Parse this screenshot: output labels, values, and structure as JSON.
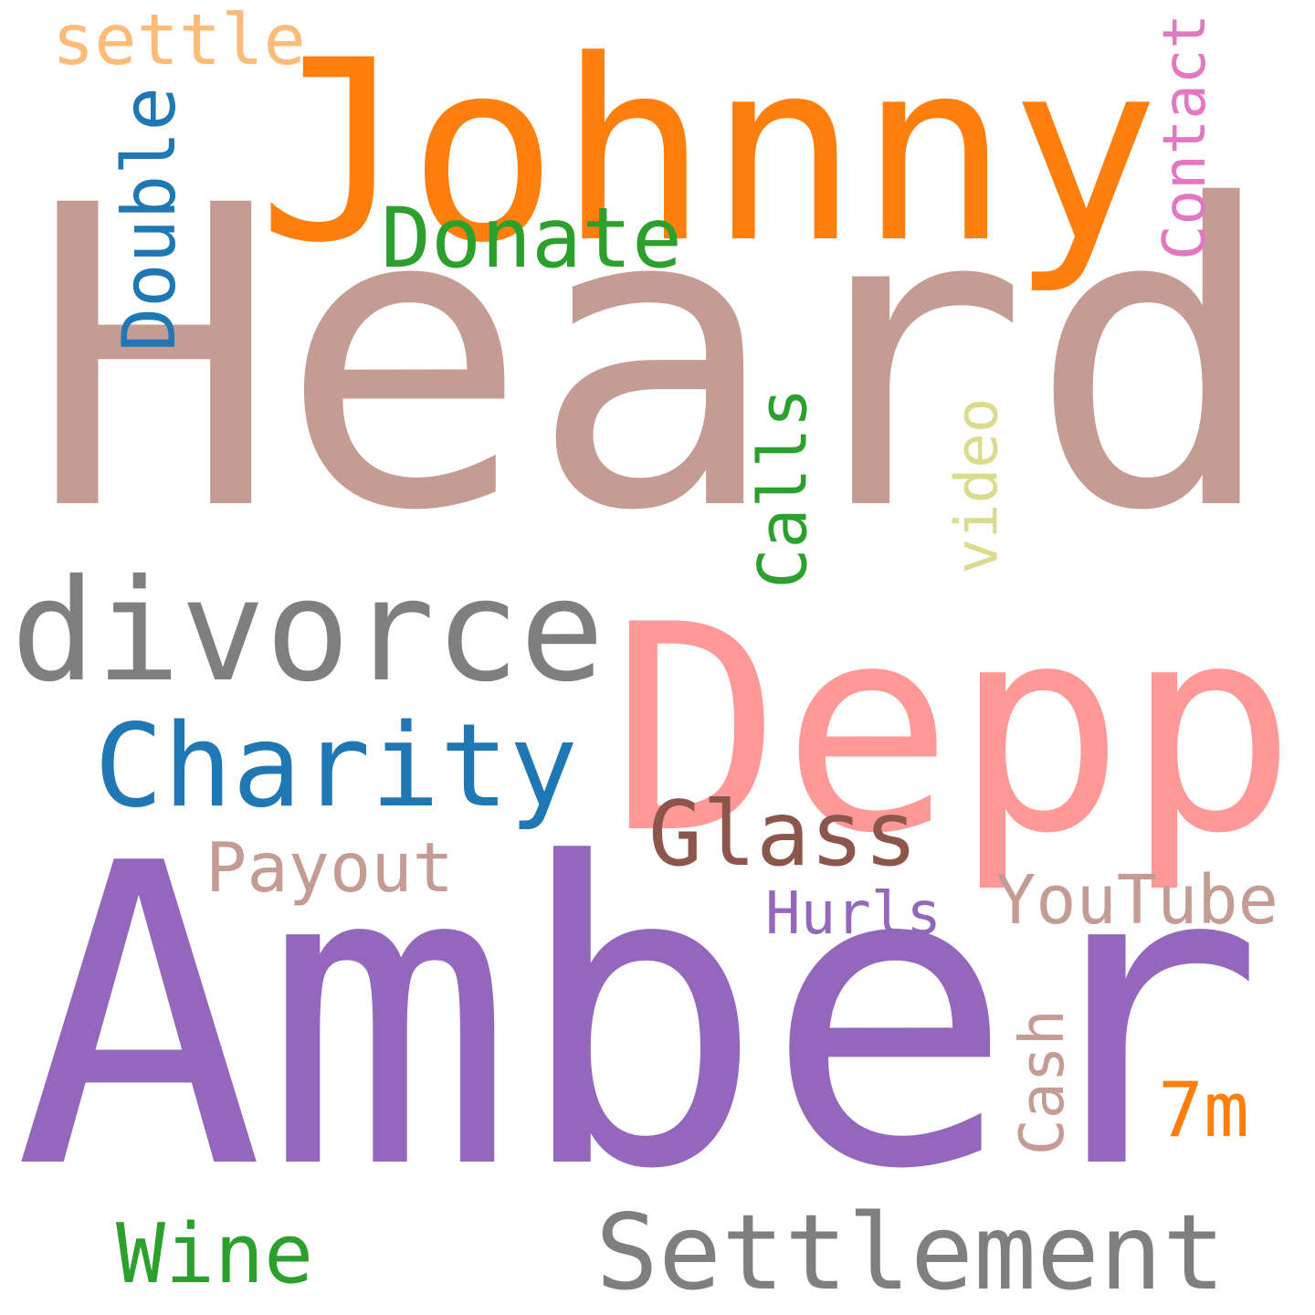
{
  "words": [
    {
      "text": "Heard",
      "color": "#c49c94"
    },
    {
      "text": "Amber",
      "color": "#9467bd"
    },
    {
      "text": "Johnny",
      "color": "#ff7f0e"
    },
    {
      "text": "Depp",
      "color": "#ff9896"
    },
    {
      "text": "divorce",
      "color": "#7f7f7f"
    },
    {
      "text": "Charity",
      "color": "#1f77b4"
    },
    {
      "text": "Settlement",
      "color": "#7f7f7f"
    },
    {
      "text": "Glass",
      "color": "#8c564b"
    },
    {
      "text": "Donate",
      "color": "#2ca02c"
    },
    {
      "text": "Payout",
      "color": "#c49c94"
    },
    {
      "text": "YouTube",
      "color": "#c49c94"
    },
    {
      "text": "Wine",
      "color": "#2ca02c"
    },
    {
      "text": "settle",
      "color": "#ffbb78"
    },
    {
      "text": "Hurls",
      "color": "#9467bd"
    },
    {
      "text": "7m",
      "color": "#ff7f0e"
    },
    {
      "text": "Double",
      "color": "#1f77b4"
    },
    {
      "text": "Calls",
      "color": "#2ca02c"
    },
    {
      "text": "video",
      "color": "#dbdb8d"
    },
    {
      "text": "Contact",
      "color": "#e377c2"
    },
    {
      "text": "Cash",
      "color": "#c49c94"
    }
  ]
}
